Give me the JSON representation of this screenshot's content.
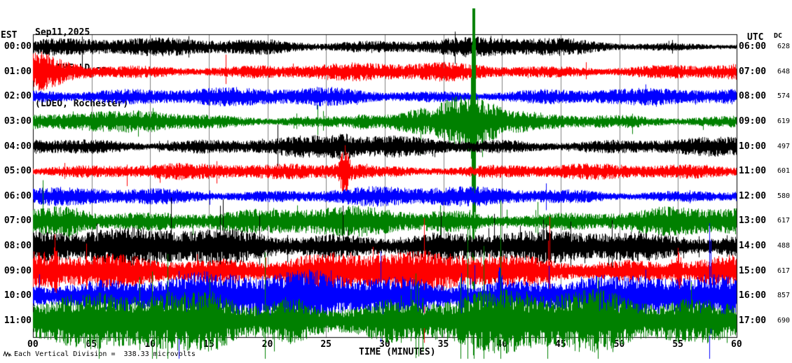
{
  "header": {
    "date": "Sep11,2025",
    "station": "ROC HHE LD --",
    "location": "(LDEO, Rochester)"
  },
  "axes": {
    "left_header": "EST",
    "right_header": "UTC",
    "dc_header": "DC",
    "x_title": "TIME (MINUTES)",
    "x_ticks": [
      "00",
      "05",
      "10",
      "15",
      "20",
      "25",
      "30",
      "35",
      "40",
      "45",
      "50",
      "55",
      "60"
    ],
    "footnote": "Each Vertical Division =  338.33 microvolts"
  },
  "chart_data": {
    "type": "line",
    "subtype": "helicorder-seismogram",
    "title": "ROC HHE LD -- (LDEO, Rochester) Sep11,2025",
    "xlabel": "TIME (MINUTES)",
    "x_range": [
      0,
      60
    ],
    "x_tick_interval_min": 5,
    "grid": "vertical lines every 5 minutes",
    "microvolts_per_division": "338.33",
    "colors": {
      "black": "#000000",
      "red": "#ff0000",
      "blue": "#0000ff",
      "green": "#008000",
      "grid": "#808080"
    },
    "trace_color_cycle": [
      "black",
      "red",
      "blue",
      "green"
    ],
    "rows": [
      {
        "est": "00:00",
        "utc": "06:00",
        "dc": "628",
        "color": "black",
        "base_amp": 10,
        "spike_p": 0.006,
        "spike_m": 1.5,
        "activity": [
          1.1,
          1.0,
          1.0,
          1.05,
          1.2,
          1.0,
          1.05,
          1.25,
          1.15,
          1.0,
          0.55,
          0.6
        ],
        "events": []
      },
      {
        "est": "01:00",
        "utc": "07:00",
        "dc": "648",
        "color": "red",
        "base_amp": 10,
        "spike_p": 0.008,
        "spike_m": 1.5,
        "activity": [
          1.6,
          1.15,
          1.0,
          1.0,
          1.0,
          1.05,
          1.0,
          1.15,
          1.0,
          1.0,
          1.0,
          1.05
        ],
        "events": [
          {
            "minute": 0.8,
            "width_min": 2.5,
            "amp_mult": 1.5
          }
        ]
      },
      {
        "est": "02:00",
        "utc": "08:00",
        "dc": "574",
        "color": "blue",
        "base_amp": 10,
        "spike_p": 0.008,
        "spike_m": 1.5,
        "activity": [
          1.15,
          1.25,
          1.0,
          1.05,
          1.0,
          1.25,
          1.1,
          1.0,
          0.95,
          1.0,
          0.9,
          1.0
        ],
        "events": []
      },
      {
        "est": "03:00",
        "utc": "09:00",
        "dc": "619",
        "color": "green",
        "base_amp": 10,
        "spike_p": 0.01,
        "spike_m": 1.8,
        "activity": [
          1.0,
          1.15,
          1.1,
          1.0,
          0.95,
          1.0,
          1.3,
          1.8,
          1.25,
          1.0,
          1.0,
          1.0
        ],
        "events": [
          {
            "minute": 37.55,
            "width_min": 0.22,
            "amp_mult": 16,
            "full_span": true
          },
          {
            "minute": 37.3,
            "width_min": 3.2,
            "amp_mult": 2.8
          },
          {
            "minute": 28.0,
            "width_min": 1.5,
            "amp_mult": 1.6
          },
          {
            "minute": 10.5,
            "width_min": 3.5,
            "amp_mult": 1.45
          }
        ]
      },
      {
        "est": "04:00",
        "utc": "10:00",
        "dc": "497",
        "color": "black",
        "base_amp": 11,
        "spike_p": 0.008,
        "spike_m": 1.5,
        "activity": [
          1.15,
          1.05,
          1.0,
          1.05,
          1.0,
          1.25,
          1.15,
          1.05,
          1.0,
          1.0,
          0.95,
          1.0
        ],
        "events": [
          {
            "minute": 26.5,
            "width_min": 1.5,
            "amp_mult": 1.4
          }
        ]
      },
      {
        "est": "05:00",
        "utc": "11:00",
        "dc": "601",
        "color": "red",
        "base_amp": 9,
        "spike_p": 0.008,
        "spike_m": 1.5,
        "activity": [
          1.0,
          1.0,
          1.0,
          1.0,
          1.0,
          1.3,
          1.1,
          1.0,
          1.0,
          1.0,
          0.95,
          1.0
        ],
        "events": [
          {
            "minute": 26.55,
            "width_min": 0.6,
            "amp_mult": 3.5
          },
          {
            "minute": 26.7,
            "width_min": 2.5,
            "amp_mult": 1.9
          }
        ]
      },
      {
        "est": "06:00",
        "utc": "12:00",
        "dc": "580",
        "color": "blue",
        "base_amp": 10,
        "spike_p": 0.01,
        "spike_m": 1.6,
        "activity": [
          1.0,
          1.0,
          1.15,
          1.0,
          1.0,
          1.3,
          1.25,
          1.15,
          1.0,
          1.0,
          0.95,
          1.0
        ],
        "events": []
      },
      {
        "est": "07:00",
        "utc": "13:00",
        "dc": "617",
        "color": "green",
        "base_amp": 14,
        "spike_p": 0.015,
        "spike_m": 2.2,
        "activity": [
          1.4,
          1.6,
          1.1,
          1.0,
          1.05,
          1.2,
          1.3,
          1.25,
          1.1,
          1.0,
          1.05,
          1.2
        ],
        "events": [
          {
            "minute": 3.5,
            "width_min": 2.5,
            "amp_mult": 1.5
          }
        ]
      },
      {
        "est": "08:00",
        "utc": "14:00",
        "dc": "488",
        "color": "black",
        "base_amp": 17,
        "spike_p": 0.018,
        "spike_m": 2.2,
        "activity": [
          1.3,
          1.4,
          1.2,
          1.3,
          1.1,
          1.25,
          1.3,
          1.2,
          1.1,
          1.05,
          1.1,
          1.05
        ],
        "events": []
      },
      {
        "est": "09:00",
        "utc": "15:00",
        "dc": "617",
        "color": "red",
        "base_amp": 19,
        "spike_p": 0.02,
        "spike_m": 2.4,
        "activity": [
          1.2,
          1.15,
          1.35,
          1.2,
          1.25,
          1.3,
          1.2,
          1.15,
          1.2,
          1.1,
          1.05,
          1.1
        ],
        "events": [
          {
            "minute": 55.0,
            "width_min": 0.35,
            "amp_mult": 3.0
          },
          {
            "minute": 1.9,
            "width_min": 0.3,
            "amp_mult": 2.6
          }
        ]
      },
      {
        "est": "10:00",
        "utc": "16:00",
        "dc": "857",
        "color": "blue",
        "base_amp": 23,
        "spike_p": 0.022,
        "spike_m": 2.4,
        "activity": [
          1.15,
          1.2,
          1.3,
          1.25,
          1.15,
          1.3,
          1.35,
          1.25,
          1.15,
          1.2,
          1.1,
          1.05
        ],
        "events": [
          {
            "minute": 36.5,
            "width_min": 0.45,
            "amp_mult": 2.8
          },
          {
            "minute": 39.8,
            "width_min": 0.35,
            "amp_mult": 2.5
          }
        ]
      },
      {
        "est": "11:00",
        "utc": "17:00",
        "dc": "690",
        "color": "green",
        "base_amp": 27,
        "spike_p": 0.025,
        "spike_m": 2.6,
        "activity": [
          1.1,
          1.15,
          1.3,
          1.25,
          1.2,
          1.3,
          1.25,
          1.2,
          1.3,
          1.35,
          1.45,
          1.5
        ],
        "events": [
          {
            "minute": 16.0,
            "width_min": 2.5,
            "amp_mult": 1.45
          },
          {
            "minute": 22.0,
            "width_min": 1.5,
            "amp_mult": 1.35
          }
        ]
      }
    ]
  }
}
